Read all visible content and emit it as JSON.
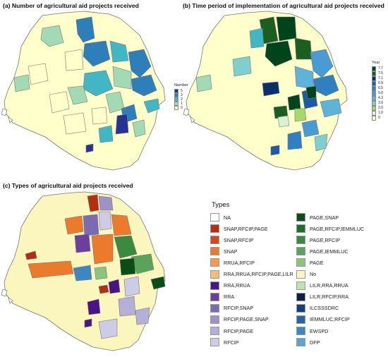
{
  "panels": {
    "a_title": "(a) Number of agricultural aid projects received",
    "b_title": "(b) Time period of implementation of agricultural aid projects received",
    "c_title": "(c) Types of agricultural aid projects received"
  },
  "scale_number": {
    "title": "Number",
    "items": [
      {
        "label": "5",
        "color": "#253494"
      },
      {
        "label": "3",
        "color": "#2c7fb8"
      },
      {
        "label": "2",
        "color": "#41b6c4"
      },
      {
        "label": "1",
        "color": "#a1dab4"
      },
      {
        "label": "0",
        "color": "#ffffcc"
      }
    ]
  },
  "scale_year": {
    "title": "Year",
    "items": [
      {
        "label": "7.7",
        "color": "#00441b"
      },
      {
        "label": "7.5",
        "color": "#1b5e20"
      },
      {
        "label": "7.1",
        "color": "#08306b"
      },
      {
        "label": "6.9",
        "color": "#1c5ba6"
      },
      {
        "label": "6.5",
        "color": "#2f7fc1"
      },
      {
        "label": "5.0",
        "color": "#4a9bd4"
      },
      {
        "label": "4.3",
        "color": "#5fb3d8"
      },
      {
        "label": "3.0",
        "color": "#7fcfcf"
      },
      {
        "label": "2.0",
        "color": "#a6d96a"
      },
      {
        "label": "1.0",
        "color": "#d9f0d3"
      },
      {
        "label": "0",
        "color": "#ffffcc"
      }
    ]
  },
  "types_legend": {
    "title": "Types",
    "left": [
      {
        "label": "NA",
        "color": "#ffffff"
      },
      {
        "label": "SNAP,RFCIP,PAGE",
        "color": "#b2300f"
      },
      {
        "label": "SNAP,RFCIP",
        "color": "#d4481a"
      },
      {
        "label": "SNAP",
        "color": "#ec7a2d"
      },
      {
        "label": "RRUA,RFCIP",
        "color": "#f79a4f"
      },
      {
        "label": "RRA,RRUA,RFCIP,PAGE,LILR",
        "color": "#fbb97c"
      },
      {
        "label": "RRA,RRUA",
        "color": "#4a1486"
      },
      {
        "label": "RRA",
        "color": "#6a3fa0"
      },
      {
        "label": "RFCIP,SNAP",
        "color": "#7b6bb5"
      },
      {
        "label": "RFCIP,PAGE,SNAP",
        "color": "#9e92c8"
      },
      {
        "label": "RFCIP,PAGE",
        "color": "#b5b0d9"
      },
      {
        "label": "RFCIP",
        "color": "#cdcbe6"
      }
    ],
    "right": [
      {
        "label": "PAGE,SNAP",
        "color": "#0b4d16"
      },
      {
        "label": "PAGE,RFCIP,IEMMLUC",
        "color": "#1f6e2c"
      },
      {
        "label": "PAGE,RFCIP",
        "color": "#3a8a3f"
      },
      {
        "label": "PAGE,IEMMLUC",
        "color": "#5ba35a"
      },
      {
        "label": "PAGE",
        "color": "#8cc47e"
      },
      {
        "label": "No",
        "color": "#fbf6bd"
      },
      {
        "label": "LILR,RRA,RRUA",
        "color": "#bfe3b0"
      },
      {
        "label": "LILR,RFCIP,RRA",
        "color": "#0d1f4a"
      },
      {
        "label": "ILCSSSDRC",
        "color": "#123f7f"
      },
      {
        "label": "IEMMLUC,RFCIP",
        "color": "#2465a3"
      },
      {
        "label": "EWSPD",
        "color": "#3d86c2"
      },
      {
        "label": "DFP",
        "color": "#5ea2d6"
      }
    ]
  }
}
